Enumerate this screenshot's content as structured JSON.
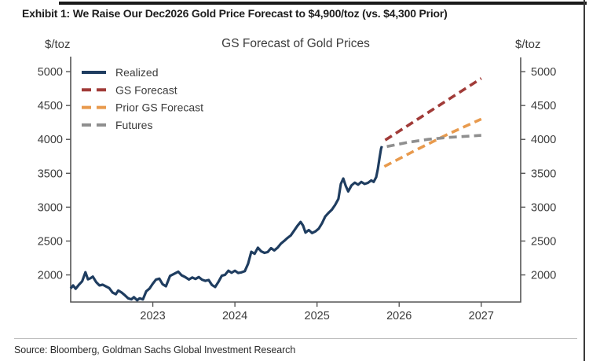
{
  "page": {
    "exhibit_title": "Exhibit 1: We Raise Our Dec2026 Gold Price Forecast to $4,900/toz (vs. $4,300 Prior)",
    "source": "Source: Bloomberg, Goldman Sachs Global Investment Research"
  },
  "chart_data": {
    "type": "line",
    "title": "GS Forecast of Gold Prices",
    "y_axis_label_left": "$/toz",
    "y_axis_label_right": "$/toz",
    "xlim": [
      2022.0,
      2027.48
    ],
    "ylim": [
      1600,
      5210
    ],
    "x_ticks": [
      2023,
      2024,
      2025,
      2026,
      2027
    ],
    "y_ticks": [
      2000,
      2500,
      3000,
      3500,
      4000,
      4500,
      5000
    ],
    "grid": false,
    "legend_position": "top-left-inside",
    "colors": {
      "realized": "#1F3D60",
      "gs_forecast": "#A13B38",
      "prior_gs_forecast": "#E89A4D",
      "futures": "#8F8F8F",
      "axis": "#555555",
      "tick_text": "#3C3C3C",
      "title_text": "#3B3B3B"
    },
    "series": [
      {
        "name": "Realized",
        "color": "#1F3D60",
        "style": "solid",
        "points": [
          [
            2022.0,
            1800
          ],
          [
            2022.03,
            1845
          ],
          [
            2022.06,
            1795
          ],
          [
            2022.1,
            1855
          ],
          [
            2022.14,
            1905
          ],
          [
            2022.18,
            2040
          ],
          [
            2022.21,
            1935
          ],
          [
            2022.24,
            1950
          ],
          [
            2022.27,
            1975
          ],
          [
            2022.31,
            1895
          ],
          [
            2022.35,
            1845
          ],
          [
            2022.39,
            1855
          ],
          [
            2022.43,
            1830
          ],
          [
            2022.47,
            1805
          ],
          [
            2022.51,
            1740
          ],
          [
            2022.55,
            1715
          ],
          [
            2022.58,
            1770
          ],
          [
            2022.62,
            1740
          ],
          [
            2022.66,
            1700
          ],
          [
            2022.7,
            1655
          ],
          [
            2022.74,
            1640
          ],
          [
            2022.77,
            1672
          ],
          [
            2022.81,
            1625
          ],
          [
            2022.84,
            1655
          ],
          [
            2022.88,
            1638
          ],
          [
            2022.92,
            1758
          ],
          [
            2022.96,
            1798
          ],
          [
            2023.0,
            1872
          ],
          [
            2023.04,
            1932
          ],
          [
            2023.08,
            1945
          ],
          [
            2023.12,
            1862
          ],
          [
            2023.16,
            1832
          ],
          [
            2023.21,
            1985
          ],
          [
            2023.26,
            2015
          ],
          [
            2023.31,
            2048
          ],
          [
            2023.35,
            1995
          ],
          [
            2023.39,
            1972
          ],
          [
            2023.44,
            1932
          ],
          [
            2023.48,
            1962
          ],
          [
            2023.52,
            1940
          ],
          [
            2023.56,
            1968
          ],
          [
            2023.6,
            1930
          ],
          [
            2023.64,
            1912
          ],
          [
            2023.68,
            1925
          ],
          [
            2023.72,
            1852
          ],
          [
            2023.76,
            1822
          ],
          [
            2023.8,
            1898
          ],
          [
            2023.84,
            1988
          ],
          [
            2023.88,
            2002
          ],
          [
            2023.92,
            2062
          ],
          [
            2023.96,
            2032
          ],
          [
            2024.0,
            2062
          ],
          [
            2024.04,
            2028
          ],
          [
            2024.08,
            2038
          ],
          [
            2024.12,
            2055
          ],
          [
            2024.16,
            2165
          ],
          [
            2024.2,
            2342
          ],
          [
            2024.24,
            2312
          ],
          [
            2024.28,
            2402
          ],
          [
            2024.32,
            2348
          ],
          [
            2024.36,
            2325
          ],
          [
            2024.4,
            2338
          ],
          [
            2024.44,
            2395
          ],
          [
            2024.48,
            2362
          ],
          [
            2024.52,
            2402
          ],
          [
            2024.56,
            2462
          ],
          [
            2024.6,
            2502
          ],
          [
            2024.64,
            2545
          ],
          [
            2024.68,
            2582
          ],
          [
            2024.72,
            2652
          ],
          [
            2024.76,
            2722
          ],
          [
            2024.8,
            2782
          ],
          [
            2024.83,
            2728
          ],
          [
            2024.86,
            2625
          ],
          [
            2024.9,
            2662
          ],
          [
            2024.94,
            2618
          ],
          [
            2024.98,
            2642
          ],
          [
            2025.02,
            2682
          ],
          [
            2025.06,
            2762
          ],
          [
            2025.1,
            2862
          ],
          [
            2025.14,
            2915
          ],
          [
            2025.18,
            2962
          ],
          [
            2025.22,
            3032
          ],
          [
            2025.26,
            3122
          ],
          [
            2025.29,
            3342
          ],
          [
            2025.32,
            3422
          ],
          [
            2025.35,
            3312
          ],
          [
            2025.38,
            3232
          ],
          [
            2025.42,
            3322
          ],
          [
            2025.46,
            3362
          ],
          [
            2025.5,
            3332
          ],
          [
            2025.54,
            3372
          ],
          [
            2025.58,
            3342
          ],
          [
            2025.62,
            3358
          ],
          [
            2025.66,
            3395
          ],
          [
            2025.69,
            3372
          ],
          [
            2025.72,
            3442
          ],
          [
            2025.74,
            3562
          ],
          [
            2025.76,
            3722
          ],
          [
            2025.78,
            3862
          ],
          [
            2025.79,
            3900
          ]
        ]
      },
      {
        "name": "GS Forecast",
        "color": "#A13B38",
        "style": "dashed",
        "points": [
          [
            2025.83,
            3990
          ],
          [
            2027.0,
            4900
          ]
        ]
      },
      {
        "name": "Prior GS Forecast",
        "color": "#E89A4D",
        "style": "dashed",
        "points": [
          [
            2025.82,
            3600
          ],
          [
            2026.2,
            3840
          ],
          [
            2026.6,
            4080
          ],
          [
            2027.0,
            4300
          ]
        ]
      },
      {
        "name": "Futures",
        "color": "#8F8F8F",
        "style": "dashed",
        "points": [
          [
            2025.85,
            3895
          ],
          [
            2026.1,
            3955
          ],
          [
            2026.35,
            4000
          ],
          [
            2026.6,
            4030
          ],
          [
            2027.0,
            4060
          ]
        ]
      }
    ],
    "annotations": {
      "forecast_dec2026": 4900,
      "prior_forecast_dec2026": 4300
    }
  }
}
